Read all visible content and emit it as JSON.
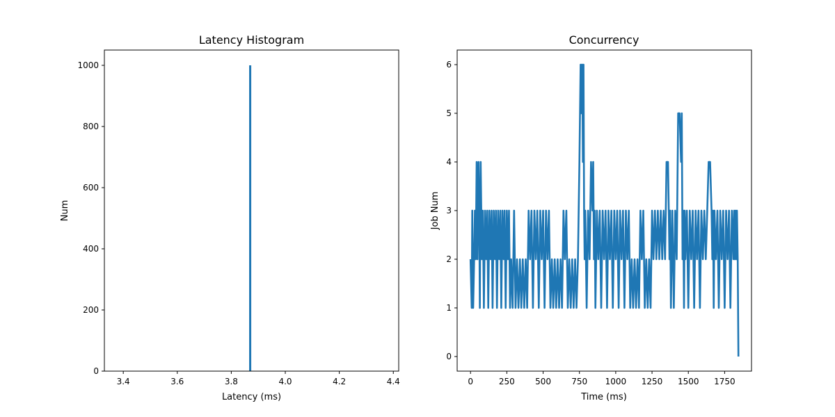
{
  "chart_data": [
    {
      "type": "bar",
      "title": "Latency Histogram",
      "xlabel": "Latency (ms)",
      "ylabel": "Num",
      "xlim": [
        3.33,
        4.42
      ],
      "ylim": [
        0,
        1050
      ],
      "xticks": [
        "3.4",
        "3.6",
        "3.8",
        "4.0",
        "4.2",
        "4.4"
      ],
      "yticks": [
        "0",
        "200",
        "400",
        "600",
        "800",
        "1000"
      ],
      "bins": [
        {
          "x": 3.87,
          "value": 1000
        }
      ],
      "color": "#1f77b4",
      "grid": false
    },
    {
      "type": "line",
      "title": "Concurrency",
      "xlabel": "Time (ms)",
      "ylabel": "Job Num",
      "xlim": [
        -92,
        1935
      ],
      "ylim": [
        -0.3,
        6.3
      ],
      "xticks": [
        "0",
        "250",
        "500",
        "750",
        "1000",
        "1250",
        "1500",
        "1750"
      ],
      "yticks": [
        "0",
        "1",
        "2",
        "3",
        "4",
        "5",
        "6"
      ],
      "color": "#1f77b4",
      "grid": false,
      "series": [
        {
          "x": [
            0,
            8,
            12,
            18,
            25,
            30,
            36,
            42,
            48,
            55,
            60,
            64,
            70,
            78,
            85,
            92,
            100,
            108,
            115,
            122,
            130,
            138,
            145,
            152,
            160,
            168,
            175,
            182,
            190,
            198,
            205,
            212,
            220,
            228,
            235,
            242,
            250,
            258,
            265,
            272,
            280,
            290,
            300,
            310,
            320,
            330,
            340,
            350,
            360,
            370,
            380,
            390,
            400,
            410,
            420,
            430,
            440,
            450,
            460,
            470,
            480,
            490,
            500,
            510,
            520,
            530,
            540,
            550,
            560,
            570,
            580,
            590,
            600,
            610,
            620,
            630,
            640,
            650,
            660,
            670,
            680,
            690,
            700,
            710,
            720,
            730,
            740,
            750,
            758,
            762,
            766,
            770,
            774,
            778,
            782,
            786,
            790,
            800,
            810,
            820,
            830,
            840,
            845,
            850,
            855,
            860,
            870,
            880,
            890,
            900,
            910,
            920,
            930,
            940,
            950,
            960,
            970,
            980,
            990,
            1000,
            1010,
            1020,
            1030,
            1040,
            1050,
            1060,
            1070,
            1080,
            1090,
            1100,
            1110,
            1120,
            1130,
            1140,
            1150,
            1160,
            1170,
            1180,
            1190,
            1200,
            1210,
            1220,
            1230,
            1240,
            1250,
            1260,
            1270,
            1280,
            1290,
            1300,
            1310,
            1320,
            1330,
            1340,
            1350,
            1360,
            1365,
            1370,
            1375,
            1380,
            1390,
            1400,
            1410,
            1420,
            1430,
            1440,
            1450,
            1455,
            1460,
            1465,
            1470,
            1475,
            1480,
            1490,
            1500,
            1510,
            1520,
            1530,
            1540,
            1550,
            1560,
            1570,
            1580,
            1590,
            1600,
            1610,
            1620,
            1630,
            1640,
            1650,
            1660,
            1665,
            1670,
            1675,
            1680,
            1690,
            1700,
            1710,
            1720,
            1730,
            1740,
            1750,
            1760,
            1770,
            1780,
            1790,
            1800,
            1810,
            1815,
            1820,
            1825,
            1830,
            1835,
            1840,
            1845
          ],
          "y": [
            2,
            1,
            3,
            1,
            2,
            3,
            2,
            4,
            2,
            4,
            3,
            1,
            4,
            2,
            3,
            1,
            3,
            2,
            3,
            1,
            3,
            2,
            3,
            1,
            3,
            2,
            3,
            1,
            3,
            2,
            3,
            1,
            3,
            2,
            3,
            1,
            3,
            2,
            3,
            1,
            2,
            1,
            3,
            1,
            2,
            1,
            2,
            1,
            2,
            1,
            2,
            1,
            3,
            2,
            3,
            1,
            3,
            2,
            3,
            1,
            3,
            2,
            3,
            1,
            3,
            2,
            3,
            1,
            2,
            1,
            2,
            1,
            2,
            1,
            2,
            1,
            3,
            2,
            3,
            1,
            2,
            1,
            2,
            1,
            2,
            1,
            2,
            4,
            6,
            5,
            6,
            6,
            4,
            6,
            3,
            2,
            3,
            1,
            3,
            2,
            4,
            3,
            4,
            2,
            3,
            1,
            3,
            2,
            3,
            1,
            3,
            2,
            3,
            1,
            3,
            2,
            3,
            1,
            3,
            2,
            3,
            1,
            3,
            2,
            3,
            1,
            3,
            2,
            3,
            1,
            2,
            1,
            2,
            1,
            2,
            1,
            3,
            2,
            3,
            1,
            2,
            1,
            2,
            1,
            3,
            2,
            3,
            2,
            3,
            2,
            3,
            2,
            3,
            2,
            4,
            4,
            3,
            2,
            3,
            1,
            3,
            1,
            3,
            2,
            5,
            5,
            4,
            5,
            2,
            3,
            1,
            3,
            2,
            3,
            1,
            3,
            2,
            3,
            1,
            3,
            2,
            3,
            1,
            3,
            2,
            3,
            2,
            3,
            4,
            4,
            3,
            2,
            3,
            1,
            3,
            2,
            3,
            1,
            3,
            2,
            3,
            1,
            3,
            2,
            3,
            1,
            3,
            2,
            3,
            2,
            3,
            2,
            3,
            2,
            0
          ]
        }
      ]
    }
  ]
}
